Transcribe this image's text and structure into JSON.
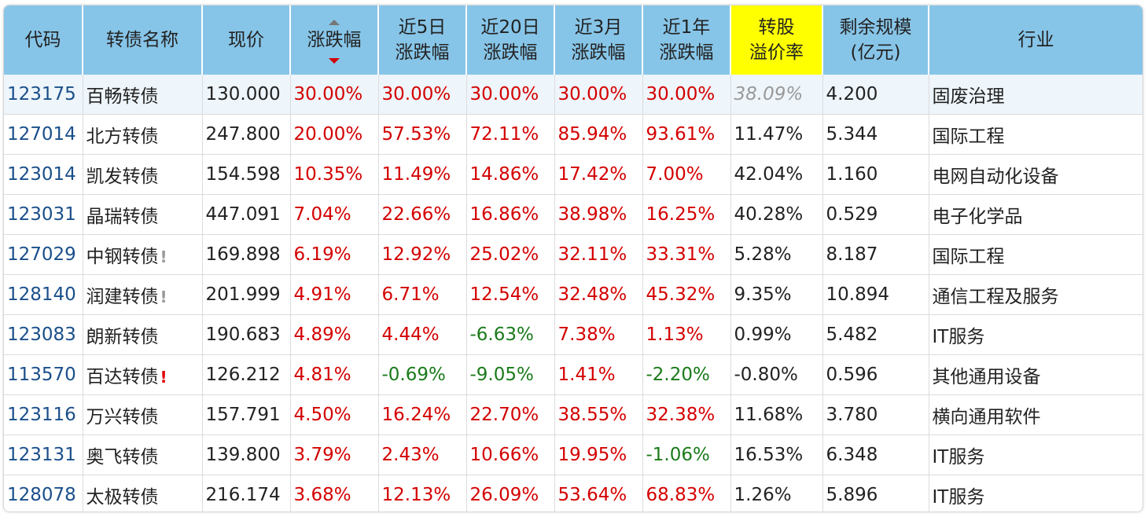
{
  "columns": [
    {
      "key": "code",
      "label": "代码"
    },
    {
      "key": "name",
      "label": "转债名称"
    },
    {
      "key": "price",
      "label": "现价"
    },
    {
      "key": "chg",
      "label": "涨跌幅"
    },
    {
      "key": "chg5",
      "label": "近5日\n涨跌幅"
    },
    {
      "key": "chg20",
      "label": "近20日\n涨跌幅"
    },
    {
      "key": "chg3m",
      "label": "近3月\n涨跌幅"
    },
    {
      "key": "chg1y",
      "label": "近1年\n涨跌幅"
    },
    {
      "key": "premium",
      "label": "转股\n溢价率"
    },
    {
      "key": "size",
      "label": "剩余规模\n(亿元)"
    },
    {
      "key": "industry",
      "label": "行业"
    }
  ],
  "rows": [
    {
      "code": "123175",
      "name": "百畅转债",
      "flag": "",
      "price": "130.000",
      "chg": "30.00%",
      "chg5": "30.00%",
      "chg20": "30.00%",
      "chg3m": "30.00%",
      "chg1y": "30.00%",
      "premium": "38.09%",
      "size": "4.200",
      "industry": "固废治理"
    },
    {
      "code": "127014",
      "name": "北方转债",
      "flag": "",
      "price": "247.800",
      "chg": "20.00%",
      "chg5": "57.53%",
      "chg20": "72.11%",
      "chg3m": "85.94%",
      "chg1y": "93.61%",
      "premium": "11.47%",
      "size": "5.344",
      "industry": "国际工程"
    },
    {
      "code": "123014",
      "name": "凯发转债",
      "flag": "",
      "price": "154.598",
      "chg": "10.35%",
      "chg5": "11.49%",
      "chg20": "14.86%",
      "chg3m": "17.42%",
      "chg1y": "7.00%",
      "premium": "42.04%",
      "size": "1.160",
      "industry": "电网自动化设备"
    },
    {
      "code": "123031",
      "name": "晶瑞转债",
      "flag": "",
      "price": "447.091",
      "chg": "7.04%",
      "chg5": "22.66%",
      "chg20": "16.86%",
      "chg3m": "38.98%",
      "chg1y": "16.25%",
      "premium": "40.28%",
      "size": "0.529",
      "industry": "电子化学品"
    },
    {
      "code": "127029",
      "name": "中钢转债",
      "flag": "!",
      "price": "169.898",
      "chg": "6.19%",
      "chg5": "12.92%",
      "chg20": "25.02%",
      "chg3m": "32.11%",
      "chg1y": "33.31%",
      "premium": "5.28%",
      "size": "8.187",
      "industry": "国际工程"
    },
    {
      "code": "128140",
      "name": "润建转债",
      "flag": "!",
      "price": "201.999",
      "chg": "4.91%",
      "chg5": "6.71%",
      "chg20": "12.54%",
      "chg3m": "32.48%",
      "chg1y": "45.32%",
      "premium": "9.35%",
      "size": "10.894",
      "industry": "通信工程及服务"
    },
    {
      "code": "123083",
      "name": "朗新转债",
      "flag": "",
      "price": "190.683",
      "chg": "4.89%",
      "chg5": "4.44%",
      "chg20": "-6.63%",
      "chg3m": "7.38%",
      "chg1y": "1.13%",
      "premium": "0.99%",
      "size": "5.482",
      "industry": "IT服务"
    },
    {
      "code": "113570",
      "name": "百达转债",
      "flag": "!red",
      "price": "126.212",
      "chg": "4.81%",
      "chg5": "-0.69%",
      "chg20": "-9.05%",
      "chg3m": "1.41%",
      "chg1y": "-2.20%",
      "premium": "-0.80%",
      "size": "0.596",
      "industry": "其他通用设备"
    },
    {
      "code": "123116",
      "name": "万兴转债",
      "flag": "",
      "price": "157.791",
      "chg": "4.50%",
      "chg5": "16.24%",
      "chg20": "22.70%",
      "chg3m": "38.55%",
      "chg1y": "32.38%",
      "premium": "11.68%",
      "size": "3.780",
      "industry": "横向通用软件"
    },
    {
      "code": "123131",
      "name": "奥飞转债",
      "flag": "",
      "price": "139.800",
      "chg": "3.79%",
      "chg5": "2.43%",
      "chg20": "10.66%",
      "chg3m": "19.95%",
      "chg1y": "-1.06%",
      "premium": "16.53%",
      "size": "6.348",
      "industry": "IT服务"
    },
    {
      "code": "128078",
      "name": "太极转债",
      "flag": "",
      "price": "216.174",
      "chg": "3.68%",
      "chg5": "12.13%",
      "chg20": "26.09%",
      "chg3m": "53.64%",
      "chg1y": "68.83%",
      "premium": "1.26%",
      "size": "5.896",
      "industry": "IT服务"
    }
  ],
  "colors": {
    "up": "#d40000",
    "down": "#1a7a1a",
    "header": "#87c5e8",
    "highlight": "#ffff00"
  },
  "icons": {
    "sort": "sort-arrows-icon",
    "warning": "exclamation-icon"
  }
}
